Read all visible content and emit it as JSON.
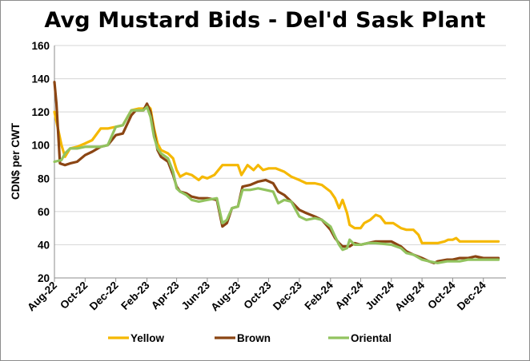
{
  "chart_data": {
    "type": "line",
    "title": "Avg Mustard Bids - Del'd Sask Plant",
    "ylabel": "CDN$ per CWT",
    "xlabel": "",
    "ylim": [
      20,
      160
    ],
    "yticks": [
      20,
      40,
      60,
      80,
      100,
      120,
      140,
      160
    ],
    "xlim": [
      "2022-08-01",
      "2025-01-15"
    ],
    "xticks": [
      "Aug-22",
      "Oct-22",
      "Dec-22",
      "Feb-23",
      "Apr-23",
      "Jun-23",
      "Aug-23",
      "Oct-23",
      "Dec-23",
      "Feb-24",
      "Apr-24",
      "Jun-24",
      "Aug-24",
      "Oct-24",
      "Dec-24"
    ],
    "grid": "horizontal",
    "legend": "bottom",
    "series": [
      {
        "name": "Yellow",
        "color": "#f5b800",
        "points": [
          [
            "2022-08-01",
            120
          ],
          [
            "2022-08-08",
            110
          ],
          [
            "2022-08-15",
            100
          ],
          [
            "2022-08-22",
            93
          ],
          [
            "2022-09-01",
            98
          ],
          [
            "2022-09-15",
            99
          ],
          [
            "2022-10-01",
            101
          ],
          [
            "2022-10-15",
            103
          ],
          [
            "2022-11-01",
            110
          ],
          [
            "2022-11-15",
            110
          ],
          [
            "2022-12-01",
            111
          ],
          [
            "2022-12-15",
            112
          ],
          [
            "2023-01-01",
            121
          ],
          [
            "2023-01-15",
            122
          ],
          [
            "2023-01-28",
            122
          ],
          [
            "2023-02-01",
            124
          ],
          [
            "2023-02-08",
            122
          ],
          [
            "2023-02-15",
            110
          ],
          [
            "2023-02-22",
            101
          ],
          [
            "2023-03-01",
            97
          ],
          [
            "2023-03-15",
            95
          ],
          [
            "2023-03-25",
            92
          ],
          [
            "2023-04-01",
            85
          ],
          [
            "2023-04-08",
            81
          ],
          [
            "2023-04-20",
            83
          ],
          [
            "2023-05-01",
            82
          ],
          [
            "2023-05-15",
            79
          ],
          [
            "2023-05-22",
            81
          ],
          [
            "2023-06-01",
            80
          ],
          [
            "2023-06-15",
            82
          ],
          [
            "2023-07-01",
            88
          ],
          [
            "2023-07-15",
            88
          ],
          [
            "2023-08-01",
            88
          ],
          [
            "2023-08-08",
            82
          ],
          [
            "2023-08-20",
            88
          ],
          [
            "2023-09-01",
            85
          ],
          [
            "2023-09-10",
            88
          ],
          [
            "2023-09-20",
            85
          ],
          [
            "2023-10-01",
            86
          ],
          [
            "2023-10-15",
            86
          ],
          [
            "2023-11-01",
            84
          ],
          [
            "2023-11-15",
            81
          ],
          [
            "2023-12-01",
            79
          ],
          [
            "2023-12-15",
            77
          ],
          [
            "2024-01-01",
            77
          ],
          [
            "2024-01-15",
            76
          ],
          [
            "2024-02-01",
            72
          ],
          [
            "2024-02-10",
            68
          ],
          [
            "2024-02-18",
            62
          ],
          [
            "2024-02-25",
            67
          ],
          [
            "2024-03-05",
            59
          ],
          [
            "2024-03-10",
            52
          ],
          [
            "2024-03-20",
            50
          ],
          [
            "2024-04-01",
            50
          ],
          [
            "2024-04-08",
            53
          ],
          [
            "2024-04-20",
            55
          ],
          [
            "2024-05-01",
            58
          ],
          [
            "2024-05-10",
            57
          ],
          [
            "2024-05-20",
            53
          ],
          [
            "2024-06-05",
            53
          ],
          [
            "2024-06-20",
            50
          ],
          [
            "2024-07-01",
            49
          ],
          [
            "2024-07-15",
            49
          ],
          [
            "2024-07-25",
            46
          ],
          [
            "2024-08-01",
            41
          ],
          [
            "2024-08-15",
            41
          ],
          [
            "2024-09-01",
            41
          ],
          [
            "2024-09-15",
            42
          ],
          [
            "2024-09-22",
            43
          ],
          [
            "2024-10-01",
            43
          ],
          [
            "2024-10-08",
            44
          ],
          [
            "2024-10-15",
            42
          ],
          [
            "2024-10-22",
            42
          ],
          [
            "2024-11-01",
            42
          ],
          [
            "2024-12-01",
            42
          ],
          [
            "2024-12-31",
            42
          ]
        ]
      },
      {
        "name": "Brown",
        "color": "#8b4513",
        "points": [
          [
            "2022-08-01",
            138
          ],
          [
            "2022-08-05",
            125
          ],
          [
            "2022-08-12",
            89
          ],
          [
            "2022-08-22",
            88
          ],
          [
            "2022-09-01",
            89
          ],
          [
            "2022-09-15",
            90
          ],
          [
            "2022-10-01",
            94
          ],
          [
            "2022-10-15",
            96
          ],
          [
            "2022-11-01",
            99
          ],
          [
            "2022-11-15",
            100
          ],
          [
            "2022-12-01",
            106
          ],
          [
            "2022-12-15",
            107
          ],
          [
            "2023-01-01",
            118
          ],
          [
            "2023-01-10",
            121
          ],
          [
            "2023-01-25",
            121
          ],
          [
            "2023-02-01",
            125
          ],
          [
            "2023-02-08",
            120
          ],
          [
            "2023-02-15",
            108
          ],
          [
            "2023-02-22",
            97
          ],
          [
            "2023-03-01",
            93
          ],
          [
            "2023-03-15",
            90
          ],
          [
            "2023-03-25",
            82
          ],
          [
            "2023-04-01",
            75
          ],
          [
            "2023-04-08",
            72
          ],
          [
            "2023-04-20",
            71
          ],
          [
            "2023-05-01",
            69
          ],
          [
            "2023-05-15",
            68
          ],
          [
            "2023-06-01",
            68
          ],
          [
            "2023-06-20",
            67
          ],
          [
            "2023-07-01",
            51
          ],
          [
            "2023-07-10",
            53
          ],
          [
            "2023-07-20",
            62
          ],
          [
            "2023-08-01",
            63
          ],
          [
            "2023-08-10",
            75
          ],
          [
            "2023-08-25",
            76
          ],
          [
            "2023-09-10",
            78
          ],
          [
            "2023-09-25",
            79
          ],
          [
            "2023-10-10",
            77
          ],
          [
            "2023-10-20",
            72
          ],
          [
            "2023-11-01",
            70
          ],
          [
            "2023-11-15",
            66
          ],
          [
            "2023-12-01",
            61
          ],
          [
            "2023-12-15",
            59
          ],
          [
            "2024-01-01",
            57
          ],
          [
            "2024-01-15",
            55
          ],
          [
            "2024-02-01",
            49
          ],
          [
            "2024-02-10",
            44
          ],
          [
            "2024-02-18",
            41
          ],
          [
            "2024-02-25",
            39
          ],
          [
            "2024-03-10",
            39
          ],
          [
            "2024-03-20",
            41
          ],
          [
            "2024-04-01",
            40
          ],
          [
            "2024-04-15",
            41
          ],
          [
            "2024-05-01",
            42
          ],
          [
            "2024-06-01",
            42
          ],
          [
            "2024-06-20",
            39
          ],
          [
            "2024-07-01",
            36
          ],
          [
            "2024-07-15",
            34
          ],
          [
            "2024-08-01",
            32
          ],
          [
            "2024-08-15",
            30
          ],
          [
            "2024-08-25",
            29
          ],
          [
            "2024-09-01",
            30
          ],
          [
            "2024-09-20",
            31
          ],
          [
            "2024-10-01",
            31
          ],
          [
            "2024-10-15",
            32
          ],
          [
            "2024-11-01",
            32
          ],
          [
            "2024-11-15",
            33
          ],
          [
            "2024-12-01",
            32
          ],
          [
            "2024-12-31",
            32
          ]
        ]
      },
      {
        "name": "Oriental",
        "color": "#92c35f",
        "points": [
          [
            "2022-08-01",
            90
          ],
          [
            "2022-08-15",
            91
          ],
          [
            "2022-08-22",
            95
          ],
          [
            "2022-09-01",
            98
          ],
          [
            "2022-09-15",
            98
          ],
          [
            "2022-10-01",
            99
          ],
          [
            "2022-10-15",
            99
          ],
          [
            "2022-11-01",
            99
          ],
          [
            "2022-11-15",
            100
          ],
          [
            "2022-12-01",
            111
          ],
          [
            "2022-12-15",
            112
          ],
          [
            "2023-01-01",
            121
          ],
          [
            "2023-01-10",
            121
          ],
          [
            "2023-01-25",
            121
          ],
          [
            "2023-02-01",
            123
          ],
          [
            "2023-02-08",
            117
          ],
          [
            "2023-02-15",
            105
          ],
          [
            "2023-02-22",
            98
          ],
          [
            "2023-03-01",
            95
          ],
          [
            "2023-03-15",
            92
          ],
          [
            "2023-03-25",
            84
          ],
          [
            "2023-04-01",
            74
          ],
          [
            "2023-04-08",
            72
          ],
          [
            "2023-04-20",
            70
          ],
          [
            "2023-05-01",
            67
          ],
          [
            "2023-05-15",
            66
          ],
          [
            "2023-06-01",
            67
          ],
          [
            "2023-06-20",
            68
          ],
          [
            "2023-07-01",
            53
          ],
          [
            "2023-07-10",
            55
          ],
          [
            "2023-07-20",
            62
          ],
          [
            "2023-08-01",
            63
          ],
          [
            "2023-08-10",
            73
          ],
          [
            "2023-08-25",
            73
          ],
          [
            "2023-09-10",
            74
          ],
          [
            "2023-09-25",
            73
          ],
          [
            "2023-10-10",
            72
          ],
          [
            "2023-10-20",
            65
          ],
          [
            "2023-11-01",
            67
          ],
          [
            "2023-11-15",
            66
          ],
          [
            "2023-12-01",
            57
          ],
          [
            "2023-12-15",
            55
          ],
          [
            "2024-01-01",
            56
          ],
          [
            "2024-01-15",
            55
          ],
          [
            "2024-02-01",
            51
          ],
          [
            "2024-02-10",
            45
          ],
          [
            "2024-02-18",
            40
          ],
          [
            "2024-02-25",
            37
          ],
          [
            "2024-03-05",
            38
          ],
          [
            "2024-03-10",
            43
          ],
          [
            "2024-03-20",
            40
          ],
          [
            "2024-04-01",
            40
          ],
          [
            "2024-04-15",
            41
          ],
          [
            "2024-05-01",
            41
          ],
          [
            "2024-06-01",
            40
          ],
          [
            "2024-06-20",
            38
          ],
          [
            "2024-07-01",
            35
          ],
          [
            "2024-07-15",
            34
          ],
          [
            "2024-08-01",
            31
          ],
          [
            "2024-08-15",
            30
          ],
          [
            "2024-09-01",
            29
          ],
          [
            "2024-09-20",
            30
          ],
          [
            "2024-10-01",
            30
          ],
          [
            "2024-10-15",
            30
          ],
          [
            "2024-11-01",
            31
          ],
          [
            "2024-12-01",
            31
          ],
          [
            "2024-12-31",
            31
          ]
        ]
      }
    ]
  }
}
